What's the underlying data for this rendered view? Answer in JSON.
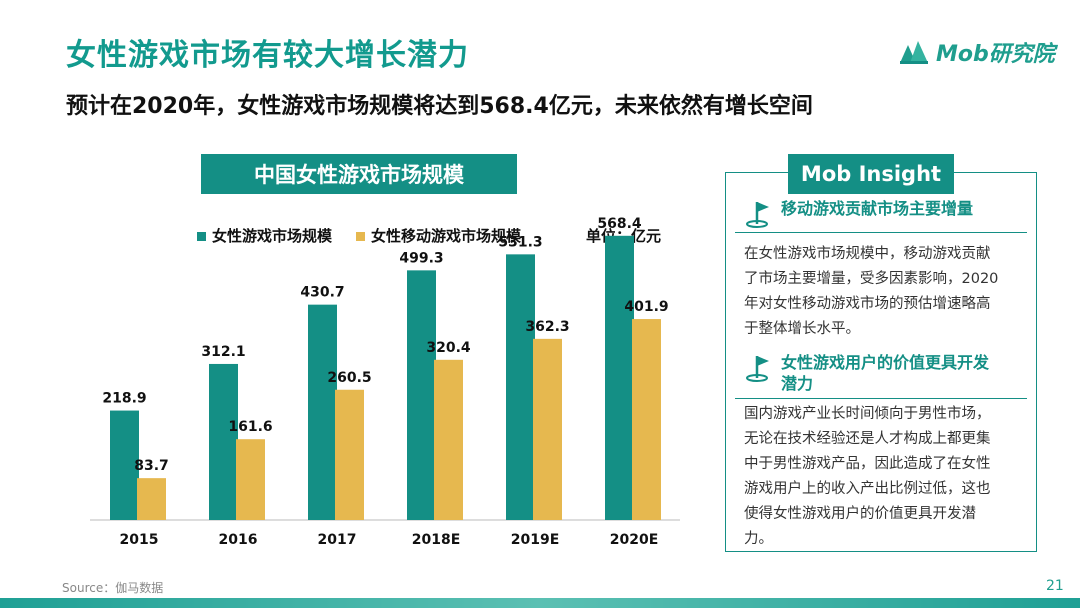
{
  "title": "女性游戏市场有较大增长潜力",
  "subtitle": "预计在2020年，女性游戏市场规模将达到568.4亿元，未来依然有增长空间",
  "logo": {
    "text": "Mob研究院"
  },
  "chart_header": "中国女性游戏市场规模",
  "chart_data": {
    "type": "bar",
    "title": "中国女性游戏市场规模",
    "categories": [
      "2015",
      "2016",
      "2017",
      "2018E",
      "2019E",
      "2020E"
    ],
    "series": [
      {
        "name": "女性游戏市场规模",
        "values": [
          218.9,
          312.1,
          430.7,
          499.3,
          531.3,
          568.4
        ],
        "color": "#148f85"
      },
      {
        "name": "女性移动游戏市场规模",
        "values": [
          83.7,
          161.6,
          260.5,
          320.4,
          362.3,
          401.9
        ],
        "color": "#e6b84f"
      }
    ],
    "unit_label": "单位：亿元",
    "ylim": [
      0,
      600
    ],
    "grid": false,
    "legend": "top-left"
  },
  "insight": {
    "header": "Mob Insight",
    "sections": [
      {
        "heading": "移动游戏贡献市场主要增量",
        "body": "在女性游戏市场规模中，移动游戏贡献了市场主要增量，受多因素影响，2020年对女性移动游戏市场的预估增速略高于整体增长水平。"
      },
      {
        "heading": "女性游戏用户的价值更具开发潜力",
        "body": "国内游戏产业长时间倾向于男性市场，无论在技术经验还是人才构成上都更集中于男性游戏产品，因此造成了在女性游戏用户上的收入产出比例过低，这也使得女性游戏用户的价值更具开发潜力。"
      }
    ]
  },
  "source": "Source：伽马数据",
  "page_number": "21",
  "colors": {
    "accent": "#148f85",
    "gold": "#e6b84f"
  }
}
